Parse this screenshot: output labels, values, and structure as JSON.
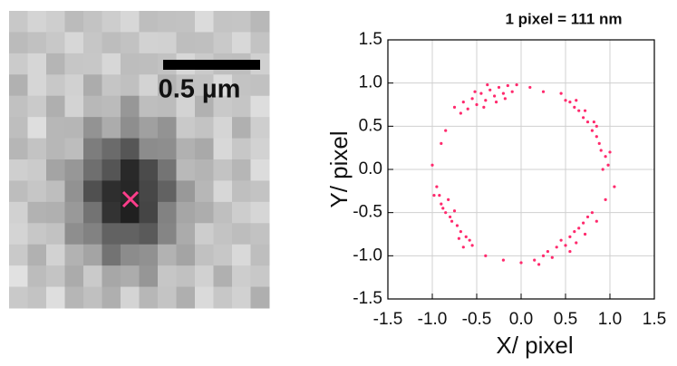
{
  "scale_bar_label": "0.5 µm",
  "chart_data": {
    "type": "scatter",
    "title": "1 pixel = 111 nm",
    "x_label": "X/ pixel",
    "y_label": "Y/ pixel",
    "color": "#ff2a6d",
    "grid": true,
    "xlim": [
      -1.5,
      1.5
    ],
    "ylim": [
      -1.5,
      1.5
    ],
    "xticks": [
      -1.5,
      {
        "value": -1,
        "label": "-1.0"
      },
      -0.5,
      {
        "value": 0,
        "label": "0.0"
      },
      0.5,
      {
        "value": 1,
        "label": "1.0"
      },
      1.5
    ],
    "yticks": [
      -1.5,
      {
        "value": -1,
        "label": "-1.0"
      },
      -0.5,
      {
        "value": 0,
        "label": "0.0"
      },
      0.5,
      {
        "value": 1,
        "label": "1.0"
      },
      1.5
    ],
    "x": [
      -0.75,
      -0.65,
      -0.55,
      -0.5,
      -0.45,
      -0.4,
      -0.35,
      -0.3,
      -0.25,
      -0.2,
      -0.15,
      -0.1,
      -0.05,
      -0.6,
      -0.42,
      -0.28,
      -0.18,
      -0.68,
      -0.52,
      -0.38,
      0.45,
      0.5,
      0.55,
      0.6,
      0.65,
      0.7,
      0.75,
      0.8,
      0.85,
      0.88,
      0.9,
      0.95,
      0.98,
      0.92,
      0.72,
      0.82,
      0.62,
      1.0,
      0.85,
      0.15,
      0.25,
      0.3,
      0.4,
      0.45,
      0.5,
      0.55,
      0.6,
      0.65,
      0.7,
      0.75,
      0.8,
      0.35,
      0.55,
      0.72,
      0.85,
      0.2,
      0.62,
      -0.95,
      -0.92,
      -0.9,
      -0.88,
      -0.85,
      -0.8,
      -0.78,
      -0.72,
      -0.68,
      -0.62,
      -0.58,
      -0.55,
      -0.82,
      -0.75,
      -0.98,
      -0.7,
      -0.65,
      -0.9,
      -1.0,
      0.1,
      0.25,
      1.05,
      0.95,
      -0.2,
      -0.4,
      -0.85,
      0.0
    ],
    "y": [
      0.72,
      0.78,
      0.82,
      0.75,
      0.88,
      0.8,
      0.92,
      0.85,
      0.95,
      0.88,
      0.97,
      0.9,
      0.98,
      0.7,
      0.72,
      0.78,
      0.82,
      0.65,
      0.9,
      0.98,
      0.88,
      0.8,
      0.78,
      0.72,
      0.68,
      0.6,
      0.55,
      0.45,
      0.38,
      0.3,
      0.22,
      0.15,
      0.05,
      0.0,
      0.68,
      0.55,
      0.8,
      0.2,
      0.5,
      -1.05,
      -1.0,
      -0.95,
      -0.9,
      -0.82,
      -0.88,
      -0.78,
      -0.72,
      -0.68,
      -0.62,
      -0.55,
      -0.5,
      -1.02,
      -0.95,
      -0.75,
      -0.6,
      -1.1,
      -0.85,
      -0.2,
      -0.3,
      -0.4,
      -0.45,
      -0.5,
      -0.55,
      -0.6,
      -0.65,
      -0.72,
      -0.78,
      -0.82,
      -0.88,
      -0.35,
      -0.48,
      -0.3,
      -0.8,
      -0.9,
      0.3,
      0.05,
      0.95,
      0.9,
      -0.2,
      -0.35,
      -1.05,
      -1.0,
      0.45,
      -1.08
    ]
  }
}
